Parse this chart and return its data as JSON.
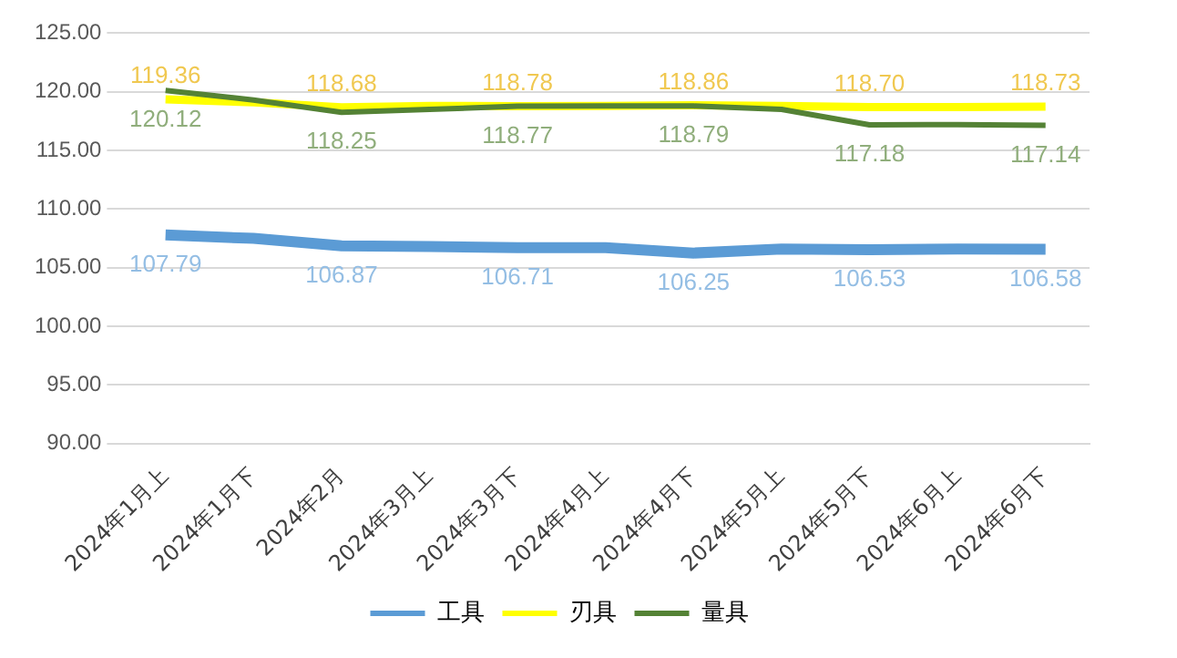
{
  "chart_data": {
    "type": "line",
    "categories": [
      "2024年1月上",
      "2024年1月下",
      "2024年2月",
      "2024年3月上",
      "2024年3月下",
      "2024年4月上",
      "2024年4月下",
      "2024年5月上",
      "2024年5月下",
      "2024年6月上",
      "2024年6月下"
    ],
    "series": [
      {
        "name": "工具",
        "color": "#5b9bd5",
        "values": [
          107.79,
          107.5,
          106.87,
          106.8,
          106.71,
          106.7,
          106.25,
          106.6,
          106.53,
          106.6,
          106.58
        ],
        "value_labels": [
          "107.79",
          null,
          "106.87",
          null,
          "106.71",
          null,
          "106.25",
          null,
          "106.53",
          null,
          "106.58"
        ]
      },
      {
        "name": "刃具",
        "color": "#ffff00",
        "values": [
          119.36,
          119.1,
          118.68,
          118.8,
          118.78,
          118.8,
          118.86,
          118.8,
          118.7,
          118.7,
          118.73
        ],
        "value_labels": [
          "119.36",
          null,
          "118.68",
          null,
          "118.78",
          null,
          "118.86",
          null,
          "118.70",
          null,
          "118.73"
        ]
      },
      {
        "name": "量具",
        "color": "#548235",
        "values": [
          120.12,
          119.3,
          118.25,
          118.5,
          118.77,
          118.8,
          118.79,
          118.5,
          117.18,
          117.2,
          117.14
        ],
        "value_labels": [
          "120.12",
          null,
          "118.25",
          null,
          "118.77",
          null,
          "118.79",
          null,
          "117.18",
          null,
          "117.14"
        ]
      }
    ],
    "ylim": [
      90,
      125
    ],
    "yticks": [
      {
        "value": 90,
        "label": "90.00"
      },
      {
        "value": 95,
        "label": "95.00"
      },
      {
        "value": 100,
        "label": "100.00"
      },
      {
        "value": 105,
        "label": "105.00"
      },
      {
        "value": 110,
        "label": "110.00"
      },
      {
        "value": 115,
        "label": "115.00"
      },
      {
        "value": 120,
        "label": "120.00"
      },
      {
        "value": 125,
        "label": "125.00"
      }
    ],
    "grid": "y",
    "legend": "bottom",
    "marker": "none",
    "line_style": "solid"
  }
}
